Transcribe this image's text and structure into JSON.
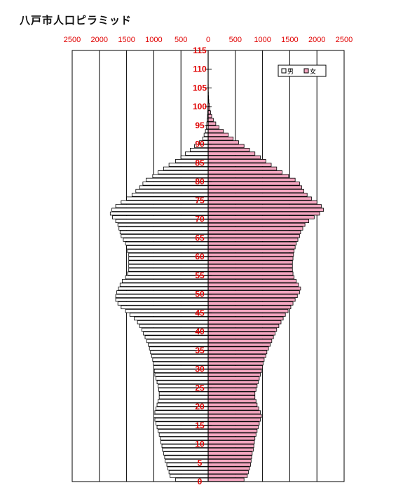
{
  "title": "八戸市人口ピラミッド",
  "chart_data": {
    "type": "bar",
    "orientation": "horizontal-pyramid",
    "title": "八戸市人口ピラミッド",
    "x_ticks": [
      "2500",
      "2000",
      "1500",
      "1000",
      "500",
      "0",
      "500",
      "1000",
      "1500",
      "2000",
      "2500"
    ],
    "xlim": [
      -2500,
      2500
    ],
    "ylim": [
      0,
      115
    ],
    "y_ticks": [
      0,
      5,
      10,
      15,
      20,
      25,
      30,
      35,
      40,
      45,
      50,
      55,
      60,
      65,
      70,
      75,
      80,
      85,
      90,
      95,
      100,
      105,
      110,
      115
    ],
    "legend": {
      "position": "top-right",
      "items": [
        "男",
        "女"
      ]
    },
    "colors": {
      "male": "#ffffff",
      "female": "#f4a6c0",
      "edge": "#000000",
      "tick": "#e00000"
    },
    "ages": [
      0,
      1,
      2,
      3,
      4,
      5,
      6,
      7,
      8,
      9,
      10,
      11,
      12,
      13,
      14,
      15,
      16,
      17,
      18,
      19,
      20,
      21,
      22,
      23,
      24,
      25,
      26,
      27,
      28,
      29,
      30,
      31,
      32,
      33,
      34,
      35,
      36,
      37,
      38,
      39,
      40,
      41,
      42,
      43,
      44,
      45,
      46,
      47,
      48,
      49,
      50,
      51,
      52,
      53,
      54,
      55,
      56,
      57,
      58,
      59,
      60,
      61,
      62,
      63,
      64,
      65,
      66,
      67,
      68,
      69,
      70,
      71,
      72,
      73,
      74,
      75,
      76,
      77,
      78,
      79,
      80,
      81,
      82,
      83,
      84,
      85,
      86,
      87,
      88,
      89,
      90,
      91,
      92,
      93,
      94,
      95,
      96,
      97,
      98,
      99,
      100,
      101,
      102,
      103,
      104,
      105,
      106,
      107,
      108,
      109,
      110
    ],
    "series": [
      {
        "name": "男",
        "values": [
          600,
          700,
          720,
          740,
          760,
          790,
          800,
          820,
          840,
          850,
          870,
          880,
          900,
          920,
          940,
          960,
          980,
          1000,
          980,
          960,
          940,
          920,
          900,
          900,
          910,
          920,
          940,
          960,
          980,
          990,
          1000,
          1010,
          1020,
          1040,
          1060,
          1080,
          1100,
          1130,
          1160,
          1190,
          1220,
          1260,
          1300,
          1360,
          1440,
          1520,
          1600,
          1660,
          1700,
          1700,
          1680,
          1650,
          1620,
          1580,
          1520,
          1480,
          1460,
          1460,
          1460,
          1460,
          1460,
          1480,
          1500,
          1520,
          1560,
          1600,
          1620,
          1640,
          1660,
          1700,
          1760,
          1800,
          1770,
          1700,
          1600,
          1500,
          1400,
          1330,
          1260,
          1200,
          1140,
          1020,
          920,
          820,
          720,
          600,
          500,
          420,
          330,
          250,
          160,
          100,
          75,
          50,
          35,
          25,
          18,
          12,
          8,
          5,
          3,
          2,
          2,
          1,
          1,
          1,
          1,
          1,
          0,
          0,
          1
        ]
      },
      {
        "name": "女",
        "values": [
          660,
          720,
          740,
          760,
          780,
          790,
          800,
          810,
          830,
          840,
          850,
          860,
          880,
          900,
          920,
          940,
          960,
          980,
          960,
          930,
          900,
          880,
          860,
          860,
          880,
          900,
          920,
          940,
          960,
          980,
          1000,
          1010,
          1030,
          1060,
          1080,
          1110,
          1140,
          1170,
          1200,
          1230,
          1260,
          1300,
          1340,
          1380,
          1420,
          1470,
          1520,
          1560,
          1600,
          1640,
          1680,
          1700,
          1660,
          1620,
          1580,
          1560,
          1550,
          1550,
          1550,
          1560,
          1570,
          1580,
          1600,
          1620,
          1650,
          1680,
          1700,
          1740,
          1780,
          1850,
          1950,
          2050,
          2120,
          2080,
          2000,
          1900,
          1820,
          1760,
          1720,
          1680,
          1600,
          1480,
          1360,
          1260,
          1160,
          1060,
          960,
          860,
          760,
          660,
          560,
          460,
          370,
          280,
          200,
          140,
          95,
          65,
          45,
          30,
          20,
          12,
          8,
          5,
          3,
          2,
          1,
          1,
          1,
          0,
          0
        ]
      }
    ]
  }
}
